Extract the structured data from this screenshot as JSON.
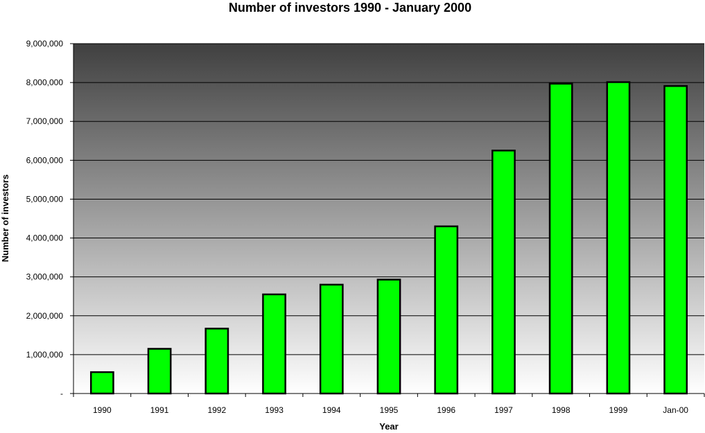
{
  "chart_data": {
    "type": "bar",
    "title": "Number of investors 1990 - January 2000",
    "xlabel": "Year",
    "ylabel": "Number of investors",
    "categories": [
      "1990",
      "1991",
      "1992",
      "1993",
      "1994",
      "1995",
      "1996",
      "1997",
      "1998",
      "1999",
      "Jan-00"
    ],
    "values": [
      550000,
      1150000,
      1670000,
      2550000,
      2800000,
      2930000,
      4300000,
      6250000,
      7970000,
      8010000,
      7910000
    ],
    "ylim": [
      0,
      9000000
    ],
    "yticks": [
      0,
      1000000,
      2000000,
      3000000,
      4000000,
      5000000,
      6000000,
      7000000,
      8000000,
      9000000
    ],
    "ytick_labels": [
      "-",
      "1,000,000",
      "2,000,000",
      "3,000,000",
      "4,000,000",
      "5,000,000",
      "6,000,000",
      "7,000,000",
      "8,000,000",
      "9,000,000"
    ],
    "grid": true,
    "legend": "none",
    "colors": {
      "bar_fill": "#00ff00",
      "bar_edge": "#000000",
      "plot_bg_top": "#404040",
      "plot_bg_bottom": "#ffffff"
    }
  }
}
